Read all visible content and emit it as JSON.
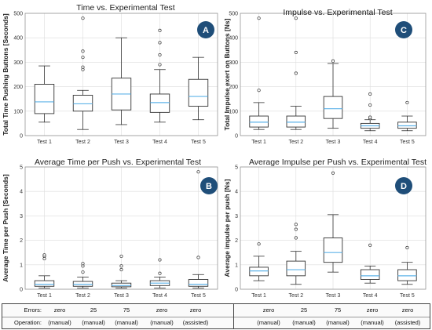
{
  "panels": [
    {
      "id": "A",
      "title": "Time vs. Experimental Test",
      "ylabel": "Total Time Pushing Buttons [Seconds]",
      "categories": [
        "Test 1",
        "Test 2",
        "Test 3",
        "Test 4",
        "Test 5"
      ],
      "yticks": [
        "0",
        "100",
        "200",
        "300",
        "400",
        "500"
      ]
    },
    {
      "id": "C",
      "title": "Impulse vs. Experimental Test",
      "ylabel": "Total Impulse exert on Buttons [Ns]",
      "categories": [
        "Test 1",
        "Test 2",
        "Test 3",
        "Test 4",
        "Test 5"
      ],
      "yticks": [
        "0",
        "100",
        "200",
        "300",
        "400",
        "500"
      ]
    },
    {
      "id": "B",
      "title": "Average Time per Push vs. Experimental Test",
      "ylabel": "Average Time per Push [Seconds]",
      "categories": [
        "Test 1",
        "Test 2",
        "Test 3",
        "Test 4",
        "Test 5"
      ],
      "yticks": [
        "0",
        "1",
        "2",
        "3",
        "4",
        "5"
      ]
    },
    {
      "id": "D",
      "title": "Average Impulse per Push vs. Experimental Test",
      "ylabel": "Average impulse per push [Ns]",
      "categories": [
        "Test 1",
        "Test 2",
        "Test 3",
        "Test 4",
        "Test 5"
      ],
      "yticks": [
        "0",
        "1",
        "2",
        "3",
        "4",
        "5"
      ]
    }
  ],
  "chart_data": [
    {
      "type": "box",
      "panel": "A",
      "ylim": [
        0,
        500
      ],
      "categories": [
        "Test 1",
        "Test 2",
        "Test 3",
        "Test 4",
        "Test 5"
      ],
      "boxes": [
        {
          "whisker_low": 55,
          "q1": 90,
          "median": 138,
          "q3": 210,
          "whisker_high": 285,
          "outliers": []
        },
        {
          "whisker_low": 25,
          "q1": 100,
          "median": 130,
          "q3": 165,
          "whisker_high": 185,
          "outliers": [
            270,
            280,
            320,
            345,
            480
          ]
        },
        {
          "whisker_low": 45,
          "q1": 105,
          "median": 170,
          "q3": 235,
          "whisker_high": 400,
          "outliers": []
        },
        {
          "whisker_low": 55,
          "q1": 95,
          "median": 135,
          "q3": 170,
          "whisker_high": 270,
          "outliers": [
            290,
            330,
            380,
            430
          ]
        },
        {
          "whisker_low": 65,
          "q1": 120,
          "median": 160,
          "q3": 230,
          "whisker_high": 320,
          "outliers": []
        }
      ],
      "grid": true
    },
    {
      "type": "box",
      "panel": "C",
      "ylim": [
        0,
        500
      ],
      "categories": [
        "Test 1",
        "Test 2",
        "Test 3",
        "Test 4",
        "Test 5"
      ],
      "boxes": [
        {
          "whisker_low": 25,
          "q1": 35,
          "median": 55,
          "q3": 80,
          "whisker_high": 135,
          "outliers": [
            185,
            480
          ]
        },
        {
          "whisker_low": 25,
          "q1": 35,
          "median": 55,
          "q3": 80,
          "whisker_high": 120,
          "outliers": [
            255,
            340,
            480
          ]
        },
        {
          "whisker_low": 30,
          "q1": 70,
          "median": 110,
          "q3": 160,
          "whisker_high": 295,
          "outliers": [
            305
          ]
        },
        {
          "whisker_low": 20,
          "q1": 30,
          "median": 40,
          "q3": 50,
          "whisker_high": 65,
          "outliers": [
            70,
            75,
            125,
            170
          ]
        },
        {
          "whisker_low": 20,
          "q1": 30,
          "median": 40,
          "q3": 55,
          "whisker_high": 80,
          "outliers": [
            135
          ]
        }
      ],
      "grid": true
    },
    {
      "type": "box",
      "panel": "B",
      "ylim": [
        0,
        5
      ],
      "categories": [
        "Test 1",
        "Test 2",
        "Test 3",
        "Test 4",
        "Test 5"
      ],
      "boxes": [
        {
          "whisker_low": 0.05,
          "q1": 0.12,
          "median": 0.2,
          "q3": 0.35,
          "whisker_high": 0.55,
          "outliers": [
            1.25,
            1.35,
            1.4
          ]
        },
        {
          "whisker_low": 0.05,
          "q1": 0.12,
          "median": 0.2,
          "q3": 0.32,
          "whisker_high": 0.5,
          "outliers": [
            0.7,
            0.95,
            1.05
          ]
        },
        {
          "whisker_low": 0.05,
          "q1": 0.1,
          "median": 0.15,
          "q3": 0.25,
          "whisker_high": 0.35,
          "outliers": [
            0.8,
            0.95,
            1.35
          ]
        },
        {
          "whisker_low": 0.05,
          "q1": 0.15,
          "median": 0.25,
          "q3": 0.35,
          "whisker_high": 0.5,
          "outliers": [
            0.65,
            1.2
          ]
        },
        {
          "whisker_low": 0.05,
          "q1": 0.12,
          "median": 0.2,
          "q3": 0.4,
          "whisker_high": 0.6,
          "outliers": [
            1.3,
            4.8
          ]
        }
      ],
      "grid": true
    },
    {
      "type": "box",
      "panel": "D",
      "ylim": [
        0,
        5
      ],
      "categories": [
        "Test 1",
        "Test 2",
        "Test 3",
        "Test 4",
        "Test 5"
      ],
      "boxes": [
        {
          "whisker_low": 0.35,
          "q1": 0.55,
          "median": 0.75,
          "q3": 0.9,
          "whisker_high": 1.35,
          "outliers": [
            1.85
          ]
        },
        {
          "whisker_low": 0.2,
          "q1": 0.55,
          "median": 0.8,
          "q3": 1.15,
          "whisker_high": 1.55,
          "outliers": [
            2.1,
            2.45,
            2.65
          ]
        },
        {
          "whisker_low": 0.7,
          "q1": 1.1,
          "median": 1.5,
          "q3": 2.1,
          "whisker_high": 3.05,
          "outliers": [
            4.75
          ]
        },
        {
          "whisker_low": 0.25,
          "q1": 0.4,
          "median": 0.55,
          "q3": 0.8,
          "whisker_high": 0.95,
          "outliers": [
            1.8
          ]
        },
        {
          "whisker_low": 0.2,
          "q1": 0.35,
          "median": 0.55,
          "q3": 0.8,
          "whisker_high": 1.1,
          "outliers": [
            1.7
          ]
        }
      ],
      "grid": true
    }
  ],
  "footer": {
    "errors_label": "Errors:",
    "operation_label": "Operation:",
    "errors": [
      "zero",
      "25",
      "75",
      "zero",
      "zero"
    ],
    "operations": [
      "(manual)",
      "(manual)",
      "(manual)",
      "(manual)",
      "(assisted)"
    ]
  },
  "colors": {
    "badge": "#1f4e79",
    "median": "#5fb3e8",
    "box": "#333333",
    "grid": "#dcdcdc"
  }
}
